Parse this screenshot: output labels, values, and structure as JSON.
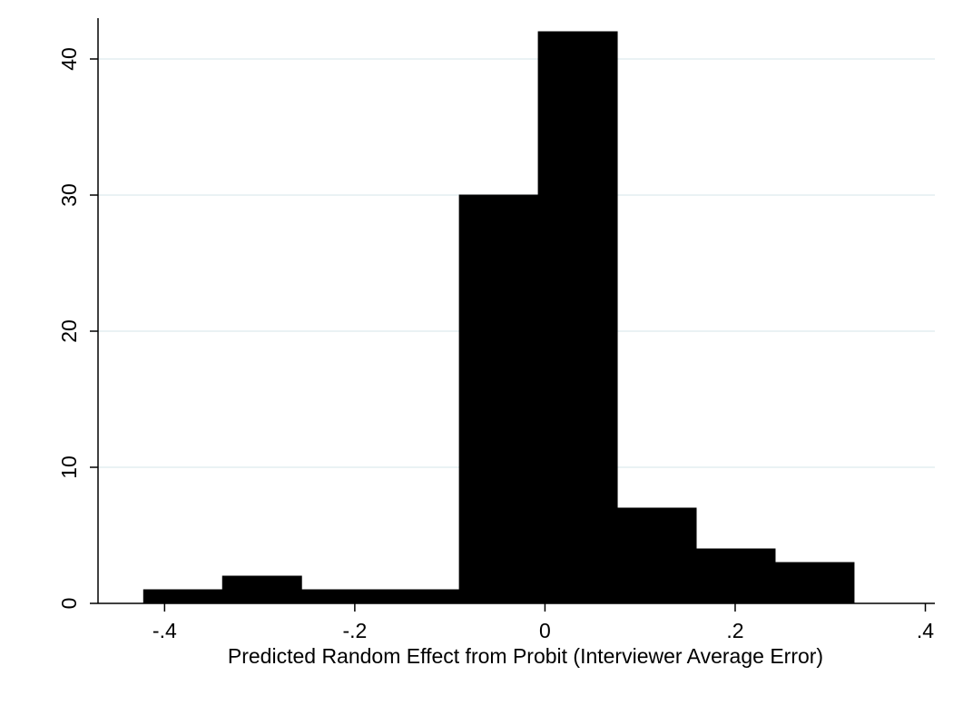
{
  "chart_data": {
    "type": "bar",
    "title": "",
    "xlabel": "Predicted Random Effect from Probit (Interviewer Average Error)",
    "ylabel": "",
    "xlim": [
      -0.47,
      0.41
    ],
    "ylim": [
      0,
      43
    ],
    "x_ticks": [
      -0.4,
      -0.2,
      0,
      0.2,
      0.4
    ],
    "x_tick_labels": [
      "-.4",
      "-.2",
      "0",
      ".2",
      ".4"
    ],
    "y_ticks": [
      0,
      10,
      20,
      30,
      40
    ],
    "y_tick_labels": [
      "0",
      "10",
      "20",
      "30",
      "40"
    ],
    "grid": "horizontal",
    "bin_edges": [
      -0.422,
      -0.339,
      -0.256,
      -0.173,
      -0.09,
      -0.007,
      0.076,
      0.159,
      0.242,
      0.325
    ],
    "values": [
      1,
      2,
      1,
      1,
      30,
      42,
      7,
      4,
      3
    ],
    "colors": {
      "bar": "#000000",
      "grid": "#e4eef0",
      "axis": "#000000",
      "background": "#ffffff"
    }
  }
}
